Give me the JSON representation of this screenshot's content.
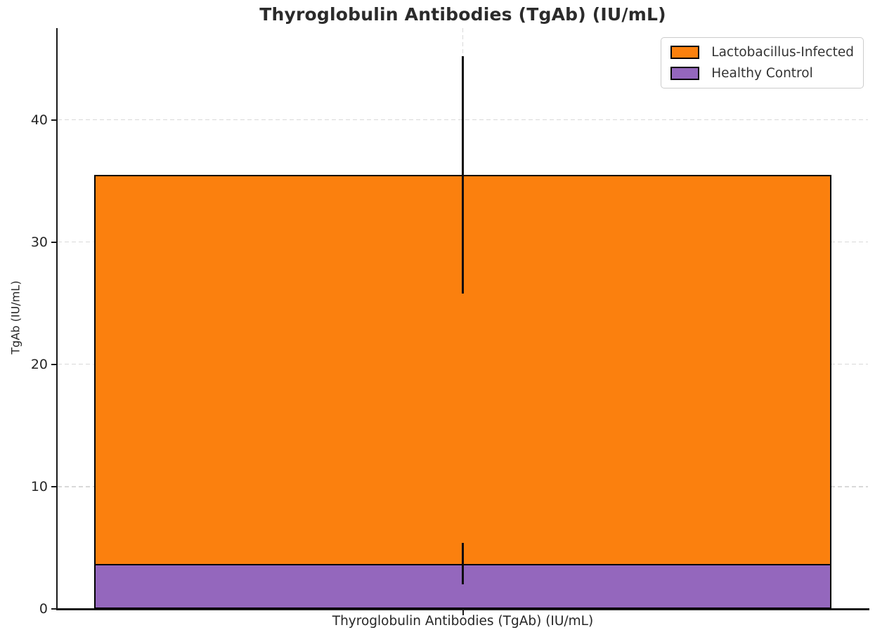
{
  "figure": {
    "title": "Thyroglobulin Antibodies (TgAb) (IU/mL)",
    "ylabel": "TgAb (IU/mL)",
    "xticklabel": "Thyroglobulin Antibodies (TgAb) (IU/mL)"
  },
  "legend": {
    "items": [
      {
        "label": "Lactobacillus-Infected",
        "color": "#fb800e"
      },
      {
        "label": "Healthy Control",
        "color": "#9467bd"
      }
    ]
  },
  "chart_data": {
    "type": "bar",
    "subtype": "overlaid-bars-with-error",
    "title": "Thyroglobulin Antibodies (TgAb) (IU/mL)",
    "xlabel": "",
    "ylabel": "TgAb (IU/mL)",
    "categories": [
      "Thyroglobulin Antibodies (TgAb) (IU/mL)"
    ],
    "series": [
      {
        "name": "Lactobacillus-Infected",
        "values": [
          35.5
        ],
        "errors": [
          9.7
        ],
        "color": "#fb800e"
      },
      {
        "name": "Healthy Control",
        "values": [
          3.7
        ],
        "errors": [
          1.7
        ],
        "color": "#9467bd"
      }
    ],
    "ylim": [
      0,
      47.5
    ],
    "yticks": [
      0,
      10,
      20,
      30,
      40
    ],
    "grid": true,
    "grid_style": "dashed",
    "grid_color": "#d9d9d9",
    "bar_edge_color": "#000000",
    "error_bar_color": "#0d0d0d",
    "legend_position": "upper right",
    "background": "#ffffff"
  }
}
